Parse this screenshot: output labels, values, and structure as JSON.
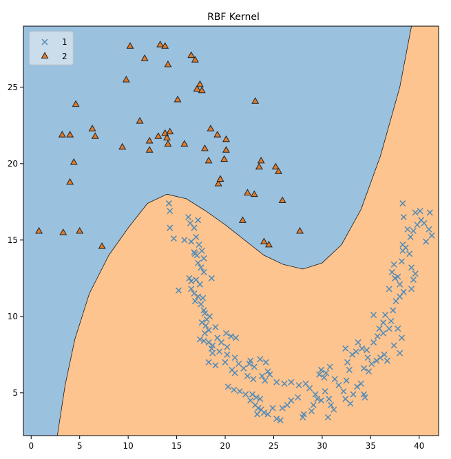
{
  "chart_data": {
    "type": "scatter",
    "title": "RBF Kernel",
    "xlabel": "",
    "ylabel": "",
    "xlim": [
      -0.8,
      42.0
    ],
    "ylim": [
      2.2,
      29.0
    ],
    "xticks": [
      0,
      5,
      10,
      15,
      20,
      25,
      30,
      35,
      40
    ],
    "xtick_labels": [
      "0",
      "5",
      "10",
      "15",
      "20",
      "25",
      "30",
      "35",
      "40"
    ],
    "yticks": [
      5,
      10,
      15,
      20,
      25
    ],
    "ytick_labels": [
      "5",
      "10",
      "15",
      "20",
      "25"
    ],
    "grid": false,
    "legend_position": "upper-left",
    "region_colors": {
      "1": "#9ac1de",
      "2": "#fdc48f"
    },
    "decision_boundary": [
      [
        2.7,
        2.2
      ],
      [
        3.5,
        5.5
      ],
      [
        4.5,
        8.5
      ],
      [
        6.0,
        11.5
      ],
      [
        8.0,
        14.0
      ],
      [
        10.0,
        15.8
      ],
      [
        12.0,
        17.4
      ],
      [
        14.0,
        18.0
      ],
      [
        16.0,
        17.7
      ],
      [
        18.0,
        16.9
      ],
      [
        20.0,
        16.0
      ],
      [
        22.0,
        15.0
      ],
      [
        24.0,
        14.0
      ],
      [
        26.0,
        13.4
      ],
      [
        28.0,
        13.1
      ],
      [
        30.0,
        13.5
      ],
      [
        32.0,
        14.7
      ],
      [
        34.0,
        17.0
      ],
      [
        36.0,
        20.5
      ],
      [
        38.0,
        25.0
      ],
      [
        39.2,
        29.0
      ]
    ],
    "series": [
      {
        "name": "1",
        "marker": "x",
        "color": "#4f8ab8",
        "points": [
          [
            14.2,
            17.4
          ],
          [
            14.3,
            16.9
          ],
          [
            14.3,
            15.8
          ],
          [
            14.7,
            15.1
          ],
          [
            16.2,
            16.5
          ],
          [
            16.4,
            16.1
          ],
          [
            16.8,
            15.8
          ],
          [
            17.2,
            16.3
          ],
          [
            15.8,
            15.0
          ],
          [
            16.5,
            14.9
          ],
          [
            17.0,
            15.2
          ],
          [
            17.3,
            14.7
          ],
          [
            16.8,
            14.2
          ],
          [
            16.9,
            14.1
          ],
          [
            17.1,
            14.0
          ],
          [
            17.6,
            14.3
          ],
          [
            17.8,
            13.8
          ],
          [
            17.2,
            13.5
          ],
          [
            17.5,
            13.2
          ],
          [
            17.8,
            12.9
          ],
          [
            16.3,
            12.5
          ],
          [
            16.5,
            12.3
          ],
          [
            17.0,
            12.4
          ],
          [
            17.4,
            12.1
          ],
          [
            18.6,
            12.5
          ],
          [
            16.5,
            11.8
          ],
          [
            16.8,
            11.5
          ],
          [
            15.2,
            11.7
          ],
          [
            17.2,
            11.3
          ],
          [
            17.7,
            11.2
          ],
          [
            16.9,
            11.0
          ],
          [
            17.5,
            10.8
          ],
          [
            17.8,
            10.4
          ],
          [
            17.9,
            10.2
          ],
          [
            18.4,
            10.0
          ],
          [
            18.1,
            9.8
          ],
          [
            17.6,
            9.6
          ],
          [
            18.0,
            9.4
          ],
          [
            19.0,
            9.3
          ],
          [
            18.3,
            9.1
          ],
          [
            17.9,
            8.9
          ],
          [
            17.4,
            8.5
          ],
          [
            17.8,
            8.4
          ],
          [
            18.3,
            8.3
          ],
          [
            18.7,
            8.1
          ],
          [
            19.2,
            8.6
          ],
          [
            20.1,
            8.9
          ],
          [
            20.6,
            8.7
          ],
          [
            21.1,
            8.6
          ],
          [
            19.6,
            8.3
          ],
          [
            20.2,
            8.0
          ],
          [
            19.4,
            7.7
          ],
          [
            18.7,
            7.6
          ],
          [
            18.6,
            7.9
          ],
          [
            20.2,
            7.5
          ],
          [
            21.0,
            7.3
          ],
          [
            22.6,
            7.1
          ],
          [
            22.5,
            6.9
          ],
          [
            23.0,
            6.7
          ],
          [
            23.6,
            7.2
          ],
          [
            24.2,
            7.0
          ],
          [
            18.3,
            7.0
          ],
          [
            19.0,
            6.8
          ],
          [
            20.0,
            7.0
          ],
          [
            20.7,
            6.5
          ],
          [
            21.4,
            6.9
          ],
          [
            21.0,
            6.3
          ],
          [
            21.9,
            6.6
          ],
          [
            22.3,
            6.1
          ],
          [
            22.9,
            5.9
          ],
          [
            23.8,
            6.1
          ],
          [
            24.4,
            6.4
          ],
          [
            24.6,
            6.2
          ],
          [
            24.1,
            5.8
          ],
          [
            25.3,
            5.7
          ],
          [
            26.1,
            5.6
          ],
          [
            26.8,
            5.7
          ],
          [
            27.6,
            5.5
          ],
          [
            28.3,
            5.6
          ],
          [
            28.7,
            5.3
          ],
          [
            20.3,
            5.4
          ],
          [
            20.9,
            5.2
          ],
          [
            21.5,
            5.1
          ],
          [
            22.1,
            4.9
          ],
          [
            22.8,
            4.9
          ],
          [
            23.2,
            4.7
          ],
          [
            23.6,
            4.6
          ],
          [
            22.6,
            4.5
          ],
          [
            23.1,
            4.2
          ],
          [
            23.4,
            4.0
          ],
          [
            23.7,
            3.9
          ],
          [
            23.3,
            3.6
          ],
          [
            24.0,
            3.7
          ],
          [
            24.4,
            3.6
          ],
          [
            24.9,
            4.0
          ],
          [
            25.3,
            3.3
          ],
          [
            25.7,
            3.2
          ],
          [
            25.9,
            4.0
          ],
          [
            26.4,
            4.2
          ],
          [
            26.8,
            4.5
          ],
          [
            27.5,
            4.7
          ],
          [
            28.0,
            3.4
          ],
          [
            28.1,
            3.6
          ],
          [
            28.9,
            3.8
          ],
          [
            29.1,
            4.2
          ],
          [
            29.5,
            4.6
          ],
          [
            29.9,
            4.5
          ],
          [
            29.3,
            4.9
          ],
          [
            30.3,
            5.1
          ],
          [
            30.7,
            4.6
          ],
          [
            30.9,
            4.2
          ],
          [
            31.2,
            3.9
          ],
          [
            30.6,
            3.4
          ],
          [
            30.2,
            6.0
          ],
          [
            29.7,
            6.2
          ],
          [
            29.9,
            6.5
          ],
          [
            30.4,
            6.3
          ],
          [
            30.8,
            6.7
          ],
          [
            31.3,
            5.9
          ],
          [
            31.7,
            5.5
          ],
          [
            32.2,
            5.1
          ],
          [
            32.4,
            4.6
          ],
          [
            32.9,
            4.3
          ],
          [
            33.2,
            4.9
          ],
          [
            33.6,
            5.4
          ],
          [
            34.0,
            5.6
          ],
          [
            34.3,
            4.9
          ],
          [
            34.4,
            4.7
          ],
          [
            32.5,
            5.8
          ],
          [
            32.8,
            6.5
          ],
          [
            32.6,
            7.0
          ],
          [
            33.1,
            7.5
          ],
          [
            33.5,
            7.7
          ],
          [
            32.4,
            7.9
          ],
          [
            33.7,
            8.3
          ],
          [
            34.1,
            7.9
          ],
          [
            34.6,
            7.8
          ],
          [
            34.7,
            7.3
          ],
          [
            34.3,
            6.6
          ],
          [
            34.8,
            6.4
          ],
          [
            35.1,
            6.9
          ],
          [
            35.6,
            7.1
          ],
          [
            36.0,
            7.3
          ],
          [
            36.4,
            7.5
          ],
          [
            35.3,
            8.3
          ],
          [
            35.7,
            8.7
          ],
          [
            36.3,
            8.9
          ],
          [
            36.9,
            9.2
          ],
          [
            37.1,
            9.7
          ],
          [
            36.5,
            10.1
          ],
          [
            36.3,
            9.6
          ],
          [
            35.9,
            9.2
          ],
          [
            35.3,
            10.1
          ],
          [
            37.3,
            10.4
          ],
          [
            37.6,
            11.0
          ],
          [
            38.0,
            11.3
          ],
          [
            38.4,
            11.6
          ],
          [
            38.0,
            12.1
          ],
          [
            37.5,
            12.5
          ],
          [
            36.9,
            11.8
          ],
          [
            37.2,
            12.9
          ],
          [
            37.4,
            13.4
          ],
          [
            38.2,
            13.6
          ],
          [
            38.3,
            14.3
          ],
          [
            38.6,
            14.5
          ],
          [
            39.0,
            14.1
          ],
          [
            38.3,
            14.7
          ],
          [
            39.2,
            13.2
          ],
          [
            39.6,
            12.8
          ],
          [
            39.4,
            12.4
          ],
          [
            39.2,
            11.8
          ],
          [
            37.8,
            9.2
          ],
          [
            38.2,
            8.6
          ],
          [
            37.4,
            8.1
          ],
          [
            36.7,
            7.1
          ],
          [
            38.0,
            7.6
          ],
          [
            39.1,
            15.2
          ],
          [
            39.4,
            15.6
          ],
          [
            39.8,
            16.0
          ],
          [
            40.2,
            16.3
          ],
          [
            40.5,
            16.1
          ],
          [
            41.0,
            15.7
          ],
          [
            40.7,
            14.9
          ],
          [
            41.3,
            15.3
          ],
          [
            40.1,
            16.9
          ],
          [
            39.6,
            16.8
          ],
          [
            41.1,
            16.8
          ],
          [
            38.3,
            17.4
          ],
          [
            38.4,
            16.5
          ],
          [
            38.8,
            15.7
          ],
          [
            37.8,
            12.6
          ]
        ]
      },
      {
        "name": "2",
        "marker": "^",
        "color": "#e07b2b",
        "points": [
          [
            0.8,
            15.6
          ],
          [
            3.3,
            15.5
          ],
          [
            5.0,
            15.6
          ],
          [
            7.3,
            14.6
          ],
          [
            3.2,
            21.9
          ],
          [
            4.0,
            21.9
          ],
          [
            4.0,
            18.8
          ],
          [
            4.4,
            20.1
          ],
          [
            4.6,
            23.9
          ],
          [
            6.3,
            22.3
          ],
          [
            6.6,
            21.8
          ],
          [
            9.4,
            21.1
          ],
          [
            9.8,
            25.5
          ],
          [
            10.2,
            27.7
          ],
          [
            11.2,
            22.8
          ],
          [
            11.7,
            26.9
          ],
          [
            12.2,
            21.5
          ],
          [
            12.2,
            20.9
          ],
          [
            13.1,
            21.8
          ],
          [
            13.3,
            27.8
          ],
          [
            13.8,
            27.7
          ],
          [
            13.8,
            22.0
          ],
          [
            14.1,
            21.3
          ],
          [
            14.0,
            21.7
          ],
          [
            14.1,
            26.5
          ],
          [
            14.3,
            22.1
          ],
          [
            15.1,
            24.2
          ],
          [
            15.8,
            21.3
          ],
          [
            16.5,
            27.1
          ],
          [
            16.9,
            26.8
          ],
          [
            17.1,
            24.9
          ],
          [
            17.4,
            25.2
          ],
          [
            17.6,
            24.8
          ],
          [
            17.9,
            21.0
          ],
          [
            18.3,
            20.2
          ],
          [
            18.5,
            22.3
          ],
          [
            19.2,
            21.9
          ],
          [
            19.3,
            18.7
          ],
          [
            19.5,
            19.0
          ],
          [
            19.9,
            20.3
          ],
          [
            20.1,
            20.9
          ],
          [
            20.1,
            21.6
          ],
          [
            21.8,
            16.3
          ],
          [
            22.3,
            18.1
          ],
          [
            23.0,
            18.0
          ],
          [
            23.1,
            24.1
          ],
          [
            23.5,
            19.8
          ],
          [
            23.7,
            20.2
          ],
          [
            24.0,
            14.9
          ],
          [
            24.5,
            14.7
          ],
          [
            25.2,
            19.8
          ],
          [
            25.5,
            19.5
          ],
          [
            25.9,
            17.6
          ],
          [
            27.7,
            15.6
          ]
        ]
      }
    ]
  }
}
